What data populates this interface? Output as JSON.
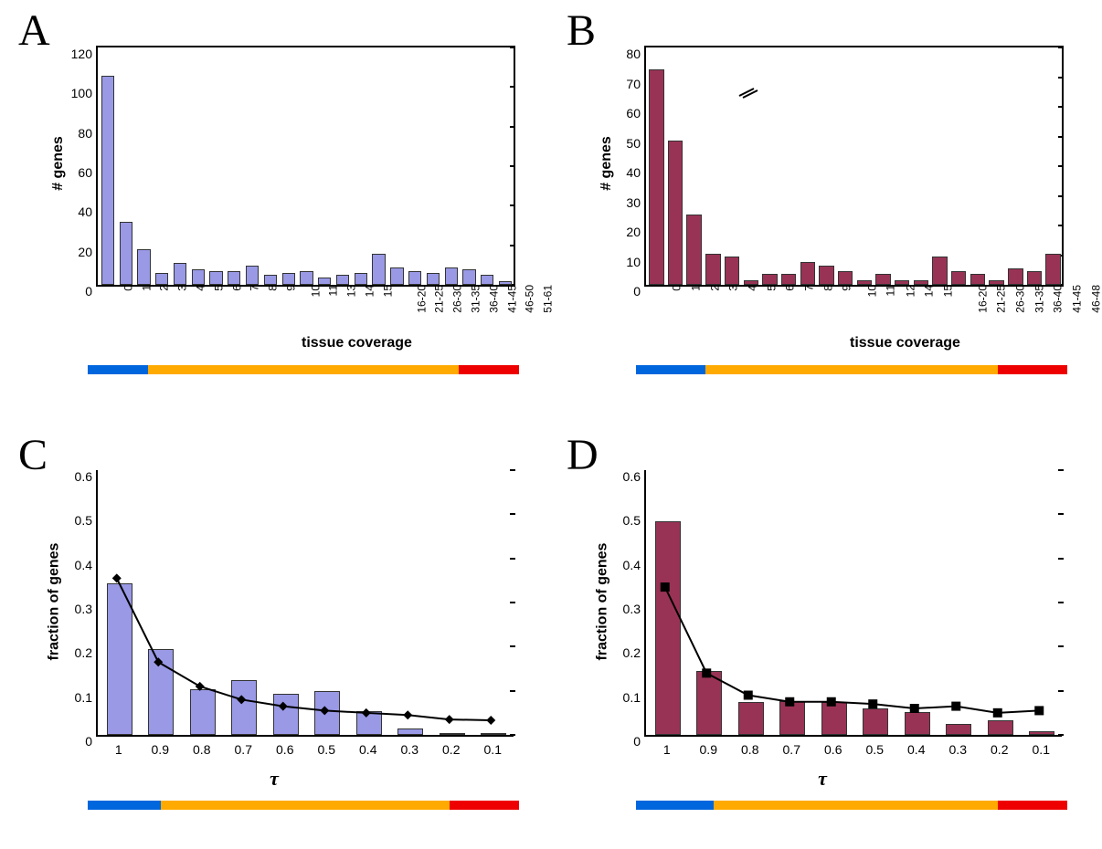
{
  "global": {
    "bg": "#ffffff",
    "axis_color": "#000000",
    "tick_fontsize": 14,
    "xtick_rot_fontsize": 12,
    "label_fontsize": 16,
    "panel_label_fontsize": 48,
    "panel_label_font": "Times New Roman",
    "legend_colors": {
      "blue": "#0066dd",
      "orange": "#ffaa00",
      "red": "#ee0000"
    }
  },
  "panels": {
    "A": {
      "label": "A",
      "type": "bar",
      "bar_color": "#9999e6",
      "bar_border": "#333333",
      "bar_width": 0.62,
      "categories": [
        "0",
        "1",
        "2",
        "3",
        "4",
        "5",
        "6",
        "7",
        "8",
        "9",
        "10",
        "11",
        "13",
        "14",
        "15",
        "16-20",
        "21-25",
        "26-30",
        "31-35",
        "36-40",
        "41-45",
        "46-50",
        "51-61"
      ],
      "values": [
        105,
        31,
        17,
        5,
        10,
        7,
        6,
        6,
        9,
        4,
        5,
        6,
        3,
        4,
        5,
        15,
        8,
        6,
        5,
        8,
        7,
        4,
        1
      ],
      "ylim": [
        0,
        120
      ],
      "ytick_step": 20,
      "yticks": [
        0,
        20,
        40,
        60,
        80,
        100,
        120
      ],
      "ylabel": "# genes",
      "xlabel": "tissue coverage",
      "legend_segments": [
        {
          "color": "#0066dd",
          "start": 0.0,
          "end": 0.14
        },
        {
          "color": "#ffaa00",
          "start": 0.14,
          "end": 0.86
        },
        {
          "color": "#ee0000",
          "start": 0.86,
          "end": 1.0
        }
      ]
    },
    "B": {
      "label": "B",
      "type": "bar",
      "bar_color": "#993355",
      "bar_border": "#333333",
      "bar_width": 0.7,
      "categories": [
        "0",
        "1",
        "2",
        "3",
        "4",
        "5",
        "6",
        "7",
        "8",
        "9",
        "10",
        "11",
        "12",
        "14",
        "15",
        "16-20",
        "21-25",
        "26-30",
        "31-35",
        "36-40",
        "41-45",
        "46-48"
      ],
      "values": [
        72,
        48,
        23,
        10,
        9,
        1,
        3,
        3,
        7,
        6,
        4,
        1,
        3,
        1,
        1,
        9,
        4,
        3,
        1,
        5,
        4,
        10
      ],
      "ylim": [
        0,
        80
      ],
      "ytick_step": 10,
      "yticks": [
        0,
        10,
        20,
        30,
        40,
        50,
        60,
        70,
        80
      ],
      "axis_break": {
        "between": [
          60,
          70
        ]
      },
      "ylabel": "# genes",
      "xlabel": "tissue coverage",
      "legend_segments": [
        {
          "color": "#0066dd",
          "start": 0.0,
          "end": 0.16
        },
        {
          "color": "#ffaa00",
          "start": 0.16,
          "end": 0.84
        },
        {
          "color": "#ee0000",
          "start": 0.84,
          "end": 1.0
        }
      ]
    },
    "C": {
      "label": "C",
      "type": "bar_line",
      "bar_color": "#9999e6",
      "bar_border": "#333333",
      "bar_width": 0.58,
      "line_color": "#000000",
      "marker": "diamond",
      "marker_color": "#000000",
      "marker_size": 10,
      "categories": [
        "1",
        "0.9",
        "0.8",
        "0.7",
        "0.6",
        "0.5",
        "0.4",
        "0.3",
        "0.2",
        "0.1"
      ],
      "bar_values": [
        0.34,
        0.19,
        0.1,
        0.12,
        0.09,
        0.095,
        0.05,
        0.01,
        0,
        0
      ],
      "line_values": [
        0.355,
        0.165,
        0.11,
        0.08,
        0.065,
        0.055,
        0.05,
        0.045,
        0.035,
        0.033
      ],
      "ylim": [
        0,
        0.6
      ],
      "ytick_step": 0.1,
      "yticks": [
        0,
        0.1,
        0.2,
        0.3,
        0.4,
        0.5,
        0.6
      ],
      "ylabel": "fraction of genes",
      "xlabel": "τ",
      "legend_segments": [
        {
          "color": "#0066dd",
          "start": 0.0,
          "end": 0.17
        },
        {
          "color": "#ffaa00",
          "start": 0.17,
          "end": 0.84
        },
        {
          "color": "#ee0000",
          "start": 0.84,
          "end": 1.0
        }
      ]
    },
    "D": {
      "label": "D",
      "type": "bar_line",
      "bar_color": "#993355",
      "bar_border": "#333333",
      "bar_width": 0.58,
      "line_color": "#000000",
      "marker": "square",
      "marker_color": "#000000",
      "marker_size": 10,
      "categories": [
        "1",
        "0.9",
        "0.8",
        "0.7",
        "0.6",
        "0.5",
        "0.4",
        "0.3",
        "0.2",
        "0.1"
      ],
      "bar_values": [
        0.48,
        0.14,
        0.07,
        0.073,
        0.07,
        0.055,
        0.048,
        0.02,
        0.03,
        0.005
      ],
      "line_values": [
        0.335,
        0.14,
        0.09,
        0.075,
        0.075,
        0.07,
        0.06,
        0.065,
        0.05,
        0.055
      ],
      "ylim": [
        0,
        0.6
      ],
      "ytick_step": 0.1,
      "yticks": [
        0,
        0.1,
        0.2,
        0.3,
        0.4,
        0.5,
        0.6
      ],
      "ylabel": "fraction of genes",
      "xlabel": "τ",
      "legend_segments": [
        {
          "color": "#0066dd",
          "start": 0.0,
          "end": 0.18
        },
        {
          "color": "#ffaa00",
          "start": 0.18,
          "end": 0.84
        },
        {
          "color": "#ee0000",
          "start": 0.84,
          "end": 1.0
        }
      ]
    }
  }
}
